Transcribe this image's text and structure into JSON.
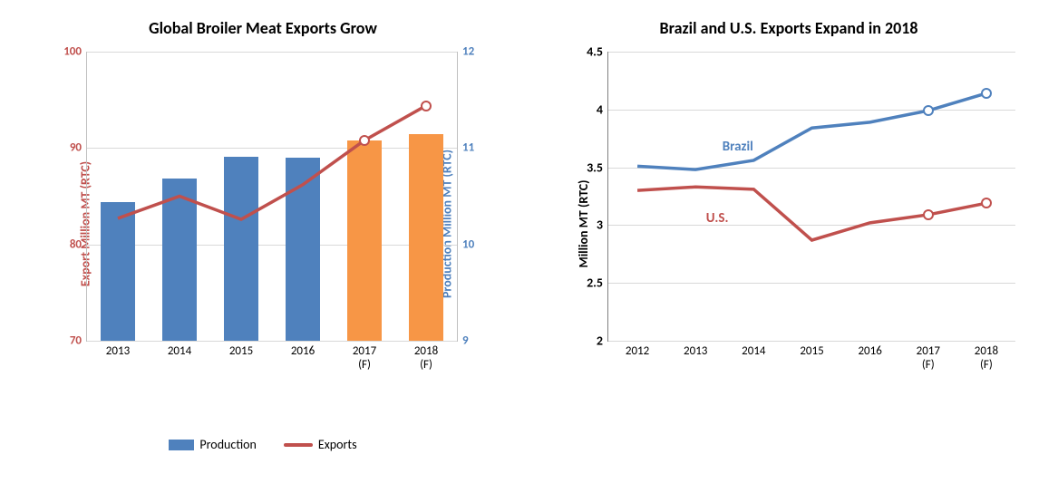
{
  "chart1": {
    "type": "bar+line",
    "title": "Global Broiler Meat Exports Grow",
    "title_fontsize": 18,
    "background_color": "#ffffff",
    "grid_color": "#d9d9d9",
    "categories": [
      "2013",
      "2014",
      "2015",
      "2016",
      "2017\n(F)",
      "2018\n(F)"
    ],
    "left_axis": {
      "label": "Export Million MT (RTC)",
      "color": "#c0504d",
      "min": 70,
      "max": 100,
      "step": 10,
      "label_fontsize": 14,
      "tick_fontsize": 13
    },
    "right_axis": {
      "label": "Production Million MT (RTC)",
      "color": "#4f81bd",
      "min": 9,
      "max": 12,
      "step": 1,
      "label_fontsize": 14,
      "tick_fontsize": 13
    },
    "bars": {
      "name": "Production",
      "values_right_axis": [
        10.44,
        10.68,
        10.91,
        10.9,
        11.08,
        11.14
      ],
      "colors": [
        "#4f81bd",
        "#4f81bd",
        "#4f81bd",
        "#4f81bd",
        "#f79646",
        "#f79646"
      ],
      "width_fraction": 0.55
    },
    "line": {
      "name": "Exports",
      "values_left_axis": [
        82.7,
        85.0,
        82.6,
        86.2,
        90.8,
        94.4
      ],
      "color": "#c0504d",
      "line_width": 3.5,
      "markers_on_last_n": 2,
      "marker_style": "open-circle",
      "marker_size": 6,
      "marker_stroke": "#c0504d",
      "marker_fill": "#ffffff"
    },
    "legend": {
      "items": [
        {
          "label": "Production",
          "swatch_color": "#4f81bd",
          "type": "bar"
        },
        {
          "label": "Exports",
          "swatch_color": "#c0504d",
          "type": "line"
        }
      ]
    }
  },
  "chart2": {
    "type": "line",
    "title": "Brazil and U.S. Exports Expand in 2018",
    "title_fontsize": 18,
    "background_color": "#ffffff",
    "grid_color": "#d9d9d9",
    "categories": [
      "2012",
      "2013",
      "2014",
      "2015",
      "2016",
      "2017\n(F)",
      "2018\n(F)"
    ],
    "y_axis": {
      "label": "Million MT (RTC)",
      "color": "#000000",
      "min": 2,
      "max": 4.5,
      "step": 0.5,
      "label_fontsize": 14,
      "tick_fontsize": 13
    },
    "series": [
      {
        "name": "Brazil",
        "label_text": "Brazil",
        "label_color": "#4f81bd",
        "label_pos_pct": {
          "x": 28,
          "y": 30
        },
        "values": [
          3.51,
          3.48,
          3.56,
          3.84,
          3.89,
          3.99,
          4.14
        ],
        "color": "#4f81bd",
        "line_width": 3.5,
        "markers_on_last_n": 2,
        "marker_fill": "#ffffff"
      },
      {
        "name": "U.S.",
        "label_text": "U.S.",
        "label_color": "#c0504d",
        "label_pos_pct": {
          "x": 24,
          "y": 55
        },
        "values": [
          3.3,
          3.33,
          3.31,
          2.87,
          3.02,
          3.09,
          3.19
        ],
        "color": "#c0504d",
        "line_width": 3.5,
        "markers_on_last_n": 2,
        "marker_fill": "#ffffff"
      }
    ]
  }
}
